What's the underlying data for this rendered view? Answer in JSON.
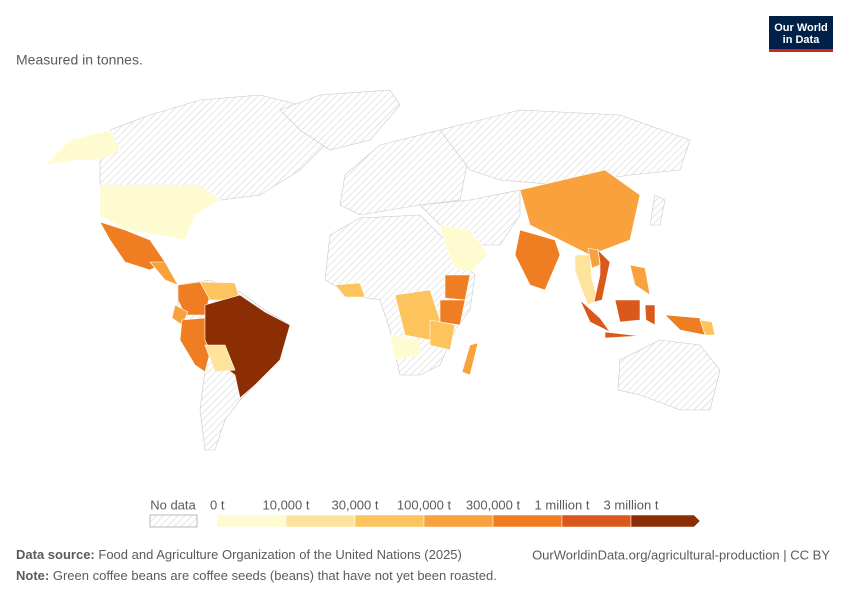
{
  "header": {
    "subtitle": "Measured in tonnes.",
    "logo": [
      "Our World",
      "in Data"
    ]
  },
  "legend": {
    "no_data_label": "No data",
    "labels": [
      "0 t",
      "10,000 t",
      "30,000 t",
      "100,000 t",
      "300,000 t",
      "1 million t",
      "3 million t"
    ],
    "colors": [
      "#fefbd1",
      "#fee39d",
      "#fdc35c",
      "#f9a13d",
      "#ef7d22",
      "#d9581a",
      "#8c2e04"
    ]
  },
  "footer": {
    "source_label": "Data source:",
    "source": "Food and Agriculture Organization of the United Nations (2025)",
    "link": "OurWorldinData.org/agricultural-production | CC BY",
    "note_label": "Note:",
    "note": "Green coffee beans are coffee seeds (beans) that have not yet been roasted."
  }
}
